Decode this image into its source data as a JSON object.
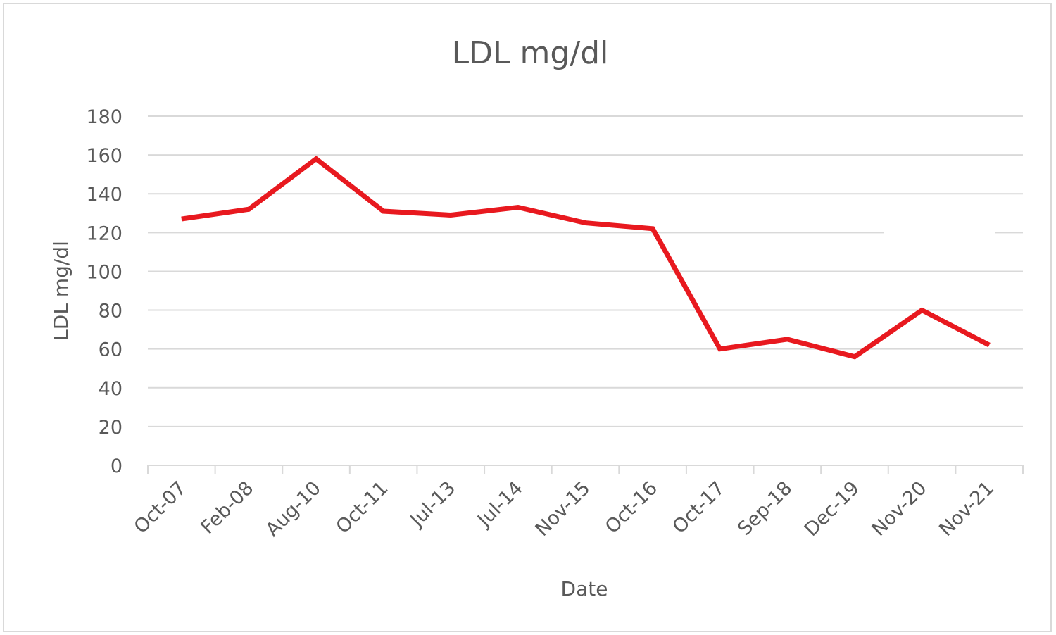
{
  "chart_data": {
    "type": "line",
    "title": "LDL mg/dl",
    "xlabel": "Date",
    "ylabel": "LDL mg/dl",
    "ylim": [
      0,
      180
    ],
    "yticks": [
      0,
      20,
      40,
      60,
      80,
      100,
      120,
      140,
      160,
      180
    ],
    "grid": true,
    "legend": "none",
    "categories": [
      "Oct-07",
      "Feb-08",
      "Aug-10",
      "Oct-11",
      "Jul-13",
      "Jul-14",
      "Nov-15",
      "Oct-16",
      "Oct-17",
      "Sep-18",
      "Dec-19",
      "Nov-20",
      "Nov-21"
    ],
    "series": [
      {
        "name": "LDL mg/dl",
        "color": "#e8191f",
        "values": [
          127,
          132,
          158,
          131,
          129,
          133,
          125,
          122,
          60,
          65,
          56,
          80,
          62
        ]
      }
    ]
  }
}
